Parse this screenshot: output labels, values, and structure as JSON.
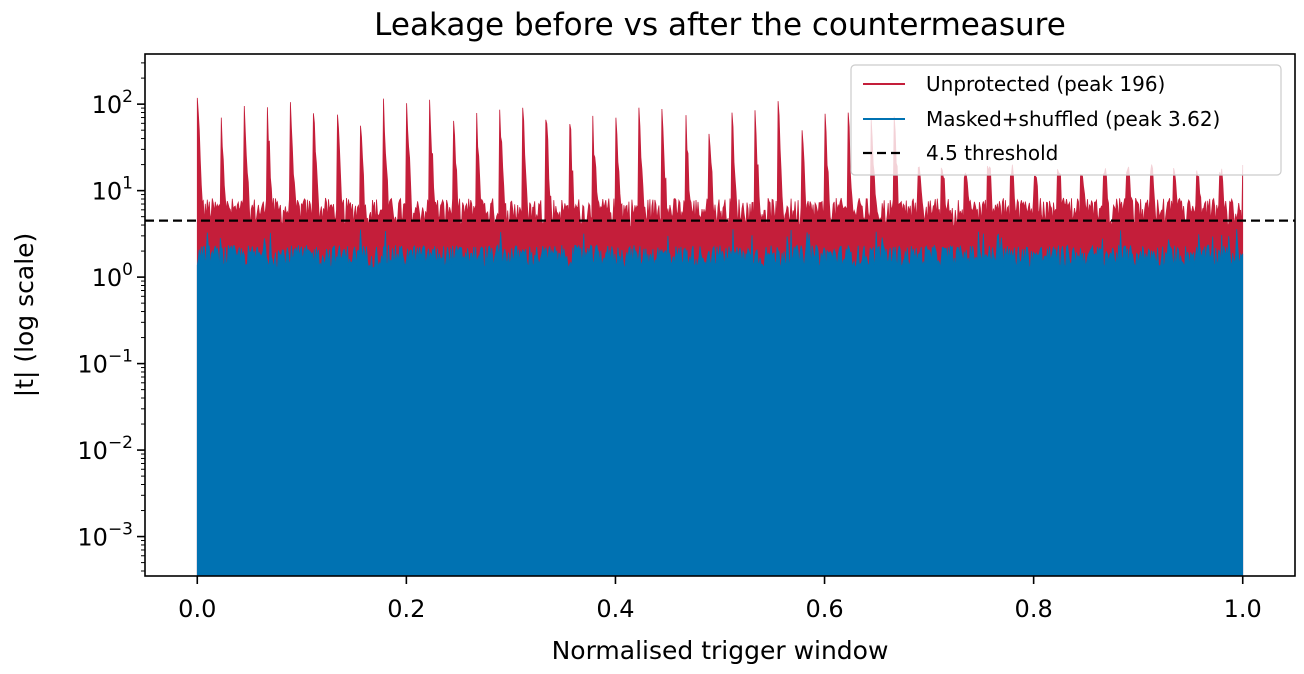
{
  "chart_data": {
    "type": "area",
    "title": "Leakage before vs after the countermeasure",
    "xlabel": "Normalised trigger window",
    "ylabel": "|t| (log scale)",
    "xlim": [
      -0.05,
      1.05
    ],
    "ylim": [
      0.00035,
      380
    ],
    "yscale": "log",
    "grid": false,
    "legend_position": "upper right",
    "x_ticks": [
      0.0,
      0.2,
      0.4,
      0.6,
      0.8,
      1.0
    ],
    "x_tick_labels": [
      "0.0",
      "0.2",
      "0.4",
      "0.6",
      "0.8",
      "1.0"
    ],
    "y_ticks": [
      {
        "value": 0.001,
        "base": "10",
        "exp": "−3"
      },
      {
        "value": 0.01,
        "base": "10",
        "exp": "−2"
      },
      {
        "value": 0.1,
        "base": "10",
        "exp": "−1"
      },
      {
        "value": 1,
        "base": "10",
        "exp": "0"
      },
      {
        "value": 10,
        "base": "10",
        "exp": "1"
      },
      {
        "value": 100,
        "base": "10",
        "exp": "2"
      }
    ],
    "series": [
      {
        "name": "Unprotected (peak 196)",
        "color": "#c41e3a",
        "peak": 196,
        "x_range": [
          0.0,
          1.0
        ],
        "baseline_approx": 5,
        "spike_count": 45,
        "spike_height_approx": 150
      },
      {
        "name": "Masked+shuffled (peak 3.62)",
        "color": "#0072b2",
        "peak": 3.62,
        "x_range": [
          0.0,
          1.0
        ],
        "baseline_approx": 1.8
      }
    ],
    "threshold": {
      "label": "4.5 threshold",
      "value": 4.5,
      "color": "#000000",
      "style": "dashed"
    }
  }
}
